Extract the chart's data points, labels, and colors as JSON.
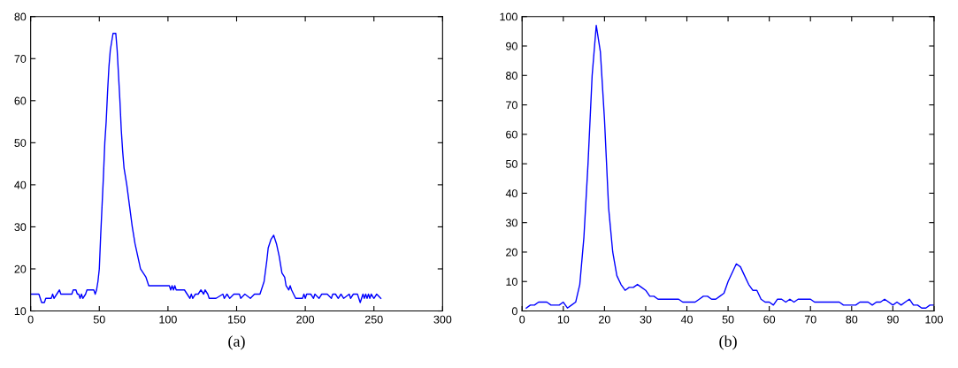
{
  "chart_data": [
    {
      "type": "line",
      "xlabel": "(a)",
      "xlim": [
        0,
        300
      ],
      "xticks": [
        0,
        50,
        100,
        150,
        200,
        250,
        300
      ],
      "ylim": [
        10,
        80
      ],
      "yticks": [
        10,
        20,
        30,
        40,
        50,
        60,
        70,
        80
      ],
      "grid": false,
      "series": [
        {
          "color": "#0000ff",
          "x": [
            0,
            6,
            8,
            10,
            11,
            15,
            16,
            17,
            19,
            21,
            22,
            30,
            31,
            33,
            34,
            35,
            36,
            37,
            38,
            40,
            41,
            46,
            47,
            48,
            49,
            50,
            51,
            52,
            53,
            54,
            55,
            56,
            57,
            58,
            59,
            60,
            62,
            63,
            64,
            65,
            66,
            67,
            68,
            70,
            72,
            74,
            76,
            78,
            80,
            82,
            84,
            86,
            101,
            102,
            103,
            104,
            105,
            106,
            112,
            114,
            116,
            117,
            118,
            120,
            122,
            124,
            126,
            127,
            129,
            130,
            135,
            140,
            141,
            143,
            145,
            148,
            152,
            153,
            156,
            160,
            163,
            167,
            168,
            170,
            172,
            173,
            175,
            177,
            179,
            181,
            183,
            185,
            186,
            188,
            189,
            190,
            193,
            198,
            199,
            200,
            201,
            204,
            206,
            207,
            210,
            212,
            216,
            219,
            220,
            222,
            224,
            226,
            228,
            232,
            233,
            235,
            238,
            240,
            241,
            242,
            243,
            244,
            245,
            246,
            247,
            248,
            250,
            252,
            255
          ],
          "values": [
            14,
            14,
            12,
            12,
            13,
            13,
            14,
            13,
            14,
            15,
            14,
            14,
            15,
            15,
            14,
            14,
            13,
            14,
            13,
            14,
            15,
            15,
            14,
            15,
            17,
            20,
            28,
            35,
            42,
            50,
            55,
            62,
            68,
            72,
            74,
            76,
            76,
            72,
            66,
            60,
            53,
            48,
            44,
            40,
            35,
            30,
            26,
            23,
            20,
            19,
            18,
            16,
            16,
            15,
            16,
            15,
            16,
            15,
            15,
            14,
            13,
            14,
            13,
            14,
            14,
            15,
            14,
            15,
            14,
            13,
            13,
            14,
            13,
            14,
            13,
            14,
            14,
            13,
            14,
            13,
            14,
            14,
            15,
            17,
            22,
            25,
            27,
            28,
            26,
            23,
            19,
            18,
            16,
            15,
            16,
            15,
            13,
            13,
            14,
            13,
            14,
            14,
            13,
            14,
            13,
            14,
            14,
            13,
            14,
            14,
            13,
            14,
            13,
            14,
            13,
            14,
            14,
            12,
            13,
            14,
            13,
            14,
            13,
            14,
            13,
            14,
            13,
            14,
            13
          ]
        }
      ]
    },
    {
      "type": "line",
      "xlabel": "(b)",
      "xlim": [
        0,
        100
      ],
      "xticks": [
        0,
        10,
        20,
        30,
        40,
        50,
        60,
        70,
        80,
        90,
        100
      ],
      "ylim": [
        0,
        100
      ],
      "yticks": [
        0,
        10,
        20,
        30,
        40,
        50,
        60,
        70,
        80,
        90,
        100
      ],
      "grid": false,
      "series": [
        {
          "color": "#0000ff",
          "x": [
            1,
            2,
            3,
            4,
            6,
            7,
            9,
            10,
            11,
            12,
            13,
            14,
            15,
            16,
            17,
            18,
            19,
            20,
            21,
            22,
            23,
            24,
            25,
            26,
            27,
            28,
            29,
            30,
            31,
            32,
            33,
            38,
            39,
            42,
            43,
            44,
            45,
            46,
            47,
            48,
            49,
            50,
            51,
            52,
            53,
            54,
            55,
            56,
            57,
            58,
            59,
            60,
            61,
            62,
            63,
            64,
            65,
            66,
            67,
            70,
            71,
            77,
            78,
            81,
            82,
            84,
            85,
            86,
            87,
            88,
            89,
            90,
            91,
            92,
            93,
            94,
            95,
            96,
            97,
            98,
            99,
            100
          ],
          "values": [
            1,
            2,
            2,
            3,
            3,
            2,
            2,
            3,
            1,
            2,
            3,
            9,
            25,
            50,
            80,
            97,
            88,
            65,
            35,
            20,
            12,
            9,
            7,
            8,
            8,
            9,
            8,
            7,
            5,
            5,
            4,
            4,
            3,
            3,
            4,
            5,
            5,
            4,
            4,
            5,
            6,
            10,
            13,
            16,
            15,
            12,
            9,
            7,
            7,
            4,
            3,
            3,
            2,
            4,
            4,
            3,
            4,
            3,
            4,
            4,
            3,
            3,
            2,
            2,
            3,
            3,
            2,
            3,
            3,
            4,
            3,
            2,
            3,
            2,
            3,
            4,
            2,
            2,
            1,
            1,
            2,
            2
          ]
        }
      ]
    }
  ]
}
